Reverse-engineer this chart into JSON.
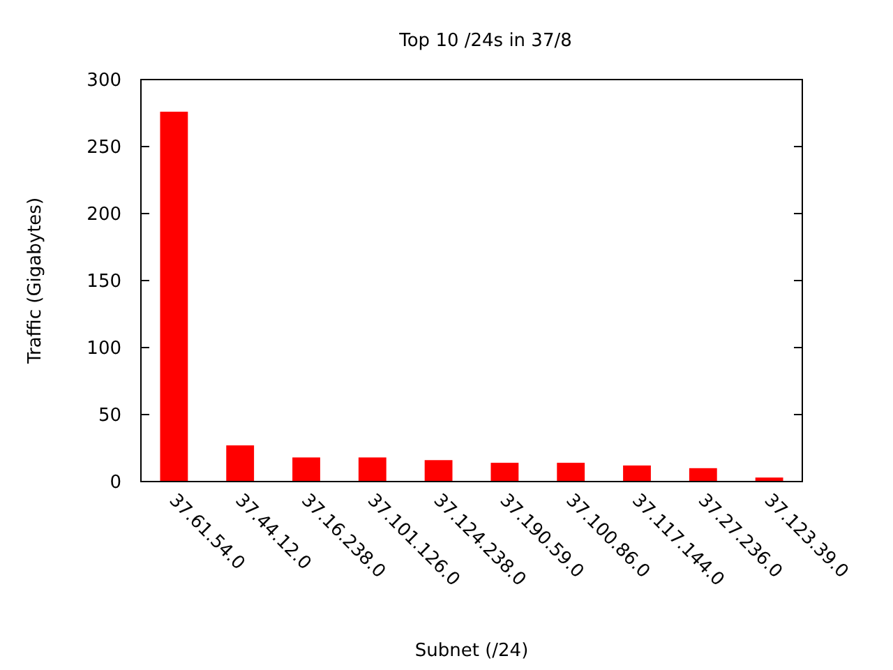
{
  "chart_data": {
    "type": "bar",
    "title": "Top 10 /24s in 37/8",
    "xlabel": "Subnet (/24)",
    "ylabel": "Traffic (Gigabytes)",
    "categories": [
      "37.61.54.0",
      "37.44.12.0",
      "37.16.238.0",
      "37.101.126.0",
      "37.124.238.0",
      "37.190.59.0",
      "37.100.86.0",
      "37.117.144.0",
      "37.27.236.0",
      "37.123.39.0"
    ],
    "values": [
      276,
      27,
      18,
      18,
      16,
      14,
      14,
      12,
      10,
      3
    ],
    "color": "#ff0000",
    "ylim": [
      0,
      300
    ],
    "yticks": [
      0,
      50,
      100,
      150,
      200,
      250,
      300
    ],
    "grid": false
  }
}
